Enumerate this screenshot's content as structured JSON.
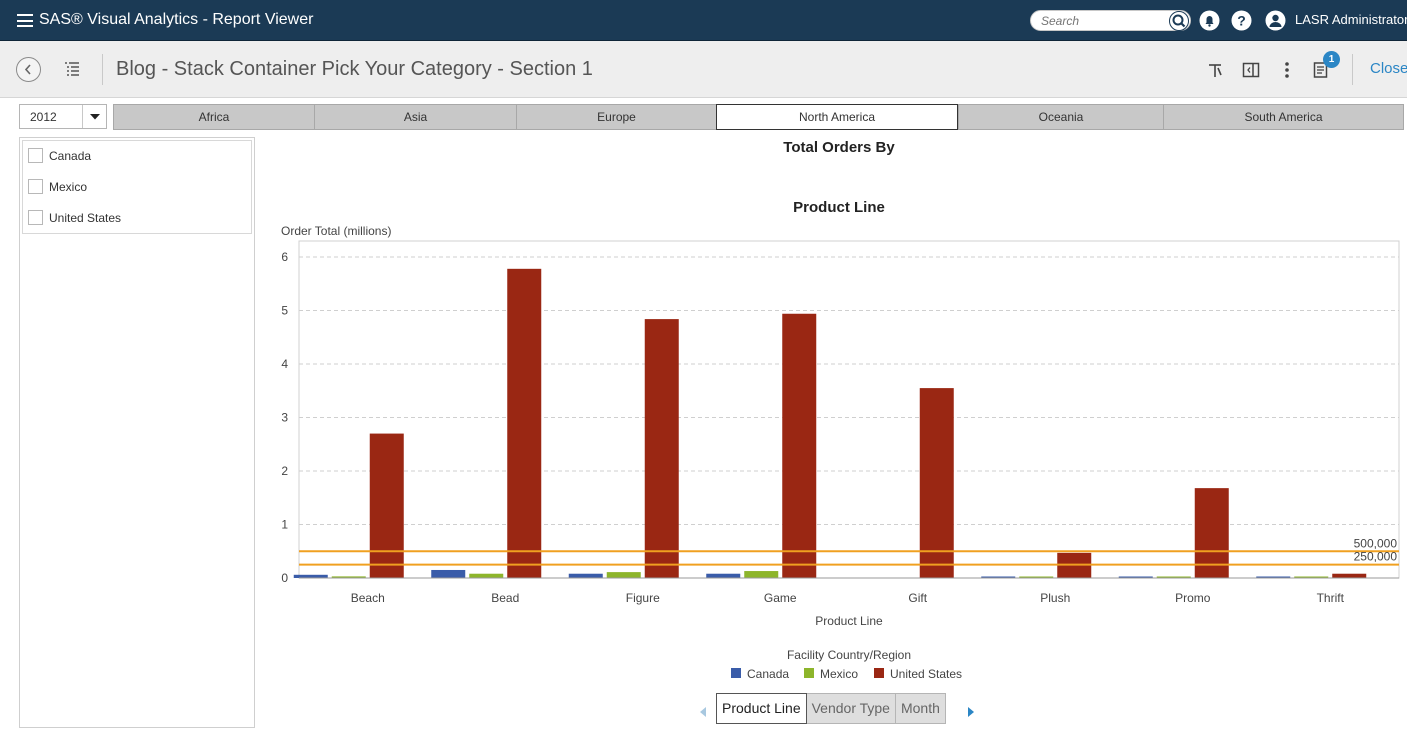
{
  "app": {
    "title": "SAS® Visual Analytics - Report Viewer",
    "search_placeholder": "Search",
    "user_name": "LASR Administrator"
  },
  "report": {
    "title": "Blog - Stack Container Pick Your Category - Section 1",
    "notification_count": "1",
    "close_label": "Close"
  },
  "filters": {
    "year": "2012",
    "regions": [
      "Africa",
      "Asia",
      "Europe",
      "North America",
      "Oceania",
      "South America"
    ],
    "active_region": "North America",
    "countries": [
      "Canada",
      "Mexico",
      "United States"
    ]
  },
  "chart_data": {
    "type": "bar",
    "title": "Total Orders By",
    "subtitle": "Product Line",
    "xlabel": "Product Line",
    "ylabel": "Order Total (millions)",
    "ylim": [
      0,
      6.3
    ],
    "yticks": [
      "0",
      "1",
      "2",
      "3",
      "4",
      "5",
      "6"
    ],
    "grid": true,
    "categories": [
      "Beach",
      "Bead",
      "Figure",
      "Game",
      "Gift",
      "Plush",
      "Promo",
      "Thrift"
    ],
    "series": [
      {
        "name": "Canada",
        "color": "#3a5ca9",
        "values": [
          0.06,
          0.15,
          0.08,
          0.08,
          0.0,
          0.02,
          0.02,
          0.02
        ]
      },
      {
        "name": "Mexico",
        "color": "#8db52b",
        "values": [
          0.03,
          0.08,
          0.11,
          0.13,
          0.0,
          0.01,
          0.01,
          0.01
        ]
      },
      {
        "name": "United States",
        "color": "#9a2713",
        "values": [
          2.7,
          5.78,
          4.84,
          4.94,
          3.55,
          0.47,
          1.68,
          0.08
        ]
      }
    ],
    "reference_lines": [
      {
        "label": "500,000",
        "value": 0.5,
        "color": "#f0a020"
      },
      {
        "label": "250,000",
        "value": 0.25,
        "color": "#f0a020"
      }
    ],
    "legend_title": "Facility Country/Region",
    "legend_position": "bottom"
  },
  "chart_nav": {
    "tabs": [
      "Product Line",
      "Vendor Type",
      "Month"
    ],
    "active": "Product Line"
  }
}
